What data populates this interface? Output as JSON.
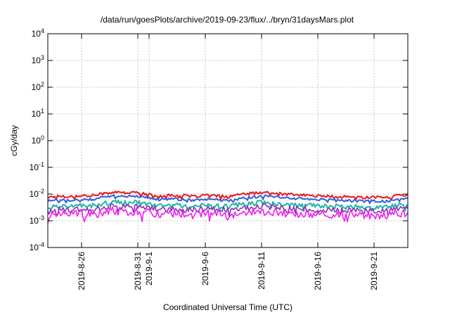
{
  "chart_data": {
    "type": "line",
    "title": "/data/run/goesPlots/archive/2019-09-23/flux/../bryn/31daysMars.plot",
    "xlabel": "Coordinated Universal Time (UTC)",
    "ylabel": "cGy/day",
    "y_scale": "log",
    "ylim": [
      0.0001,
      10000
    ],
    "y_ticks": [
      {
        "value": 0.0001,
        "base": "10",
        "exp": "-4"
      },
      {
        "value": 0.001,
        "base": "10",
        "exp": "-3"
      },
      {
        "value": 0.01,
        "base": "10",
        "exp": "-2"
      },
      {
        "value": 0.1,
        "base": "10",
        "exp": "-1"
      },
      {
        "value": 1,
        "base": "10",
        "exp": "0"
      },
      {
        "value": 10,
        "base": "10",
        "exp": "1"
      },
      {
        "value": 100,
        "base": "10",
        "exp": "2"
      },
      {
        "value": 1000,
        "base": "10",
        "exp": "3"
      },
      {
        "value": 10000,
        "base": "10",
        "exp": "4"
      }
    ],
    "xlim": [
      "2019-08-23",
      "2019-09-24"
    ],
    "x_ticks": [
      "2019-8-26",
      "2019-8-31",
      "2019-9-1",
      "2019-9-6",
      "2019-9-11",
      "2019-9-16",
      "2019-9-21"
    ],
    "x_tick_dates": [
      "2019-08-26",
      "2019-08-31",
      "2019-09-01",
      "2019-09-06",
      "2019-09-11",
      "2019-09-16",
      "2019-09-21"
    ],
    "grid": true,
    "x": [
      "2019-08-23",
      "2019-08-24",
      "2019-08-25",
      "2019-08-26",
      "2019-08-27",
      "2019-08-28",
      "2019-08-29",
      "2019-08-30",
      "2019-08-31",
      "2019-09-01",
      "2019-09-02",
      "2019-09-03",
      "2019-09-04",
      "2019-09-05",
      "2019-09-06",
      "2019-09-07",
      "2019-09-08",
      "2019-09-09",
      "2019-09-10",
      "2019-09-11",
      "2019-09-12",
      "2019-09-13",
      "2019-09-14",
      "2019-09-15",
      "2019-09-16",
      "2019-09-17",
      "2019-09-18",
      "2019-09-19",
      "2019-09-20",
      "2019-09-21",
      "2019-09-22",
      "2019-09-23",
      "2019-09-24"
    ],
    "series": [
      {
        "color": "#e8191c",
        "values": [
          0.0075,
          0.0085,
          0.008,
          0.009,
          0.0088,
          0.0105,
          0.012,
          0.011,
          0.0115,
          0.0095,
          0.0085,
          0.009,
          0.0088,
          0.008,
          0.0092,
          0.0085,
          0.008,
          0.0095,
          0.0105,
          0.0115,
          0.011,
          0.01,
          0.0095,
          0.009,
          0.0085,
          0.0082,
          0.008,
          0.0078,
          0.0075,
          0.0078,
          0.0072,
          0.009,
          0.0095
        ]
      },
      {
        "color": "#2f5fe0",
        "values": [
          0.0055,
          0.0062,
          0.0058,
          0.0065,
          0.0063,
          0.0075,
          0.0085,
          0.008,
          0.0082,
          0.0068,
          0.0062,
          0.0065,
          0.0063,
          0.0058,
          0.0066,
          0.0061,
          0.0058,
          0.0068,
          0.0075,
          0.0082,
          0.0078,
          0.0072,
          0.0068,
          0.0065,
          0.0061,
          0.0059,
          0.0058,
          0.0056,
          0.0054,
          0.0056,
          0.0052,
          0.0065,
          0.0068
        ]
      },
      {
        "color": "#1db5a6",
        "values": [
          0.0032,
          0.0036,
          0.0034,
          0.0038,
          0.0037,
          0.0044,
          0.005,
          0.0047,
          0.0048,
          0.004,
          0.0036,
          0.0038,
          0.0037,
          0.0034,
          0.0039,
          0.0036,
          0.0034,
          0.004,
          0.0044,
          0.0048,
          0.0046,
          0.0042,
          0.004,
          0.0038,
          0.0036,
          0.0035,
          0.0034,
          0.0033,
          0.0032,
          0.0033,
          0.0031,
          0.0038,
          0.004
        ]
      },
      {
        "color": "#8b2fb8",
        "values": [
          0.0024,
          0.0027,
          0.0025,
          0.0028,
          0.0027,
          0.0032,
          0.0036,
          0.0034,
          0.0035,
          0.0029,
          0.0027,
          0.0028,
          0.0027,
          0.0025,
          0.0029,
          0.0027,
          0.0025,
          0.0029,
          0.0032,
          0.0035,
          0.0034,
          0.0031,
          0.0029,
          0.0028,
          0.0027,
          0.0026,
          0.0025,
          0.0024,
          0.0023,
          0.0024,
          0.0023,
          0.0028,
          0.0029
        ]
      },
      {
        "color": "#f21df0",
        "values": [
          0.0016,
          0.0018,
          0.0017,
          0.0019,
          0.0018,
          0.0021,
          0.0024,
          0.0022,
          0.0023,
          0.0019,
          0.0018,
          0.0019,
          0.0018,
          0.0017,
          0.0019,
          0.0018,
          0.0017,
          0.0019,
          0.0021,
          0.0023,
          0.0022,
          0.002,
          0.0019,
          0.0019,
          0.0018,
          0.0017,
          0.0017,
          0.0016,
          0.0016,
          0.0016,
          0.0015,
          0.0019,
          0.002
        ]
      }
    ]
  }
}
